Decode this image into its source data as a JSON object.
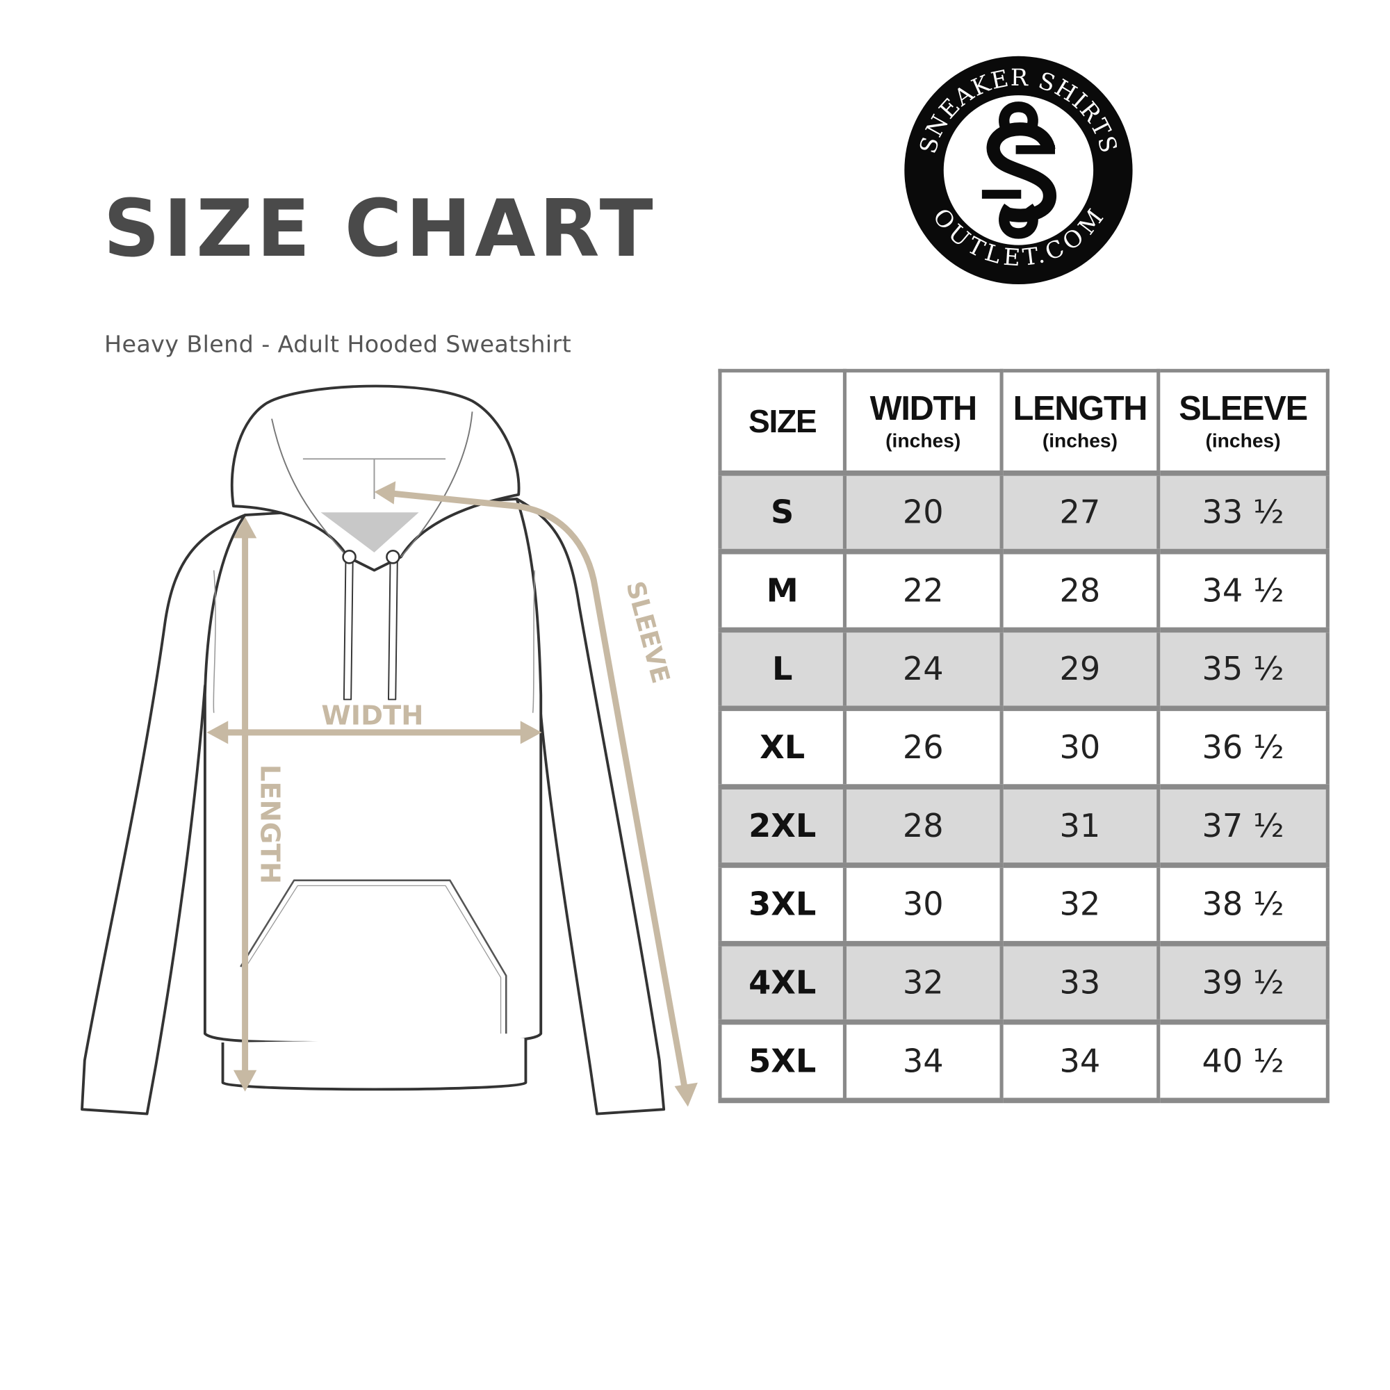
{
  "header": {
    "title": "SIZE CHART",
    "subtitle": "Heavy Blend - Adult Hooded Sweatshirt"
  },
  "logo": {
    "top_text": "SNEAKER SHIRTS",
    "bottom_text": "OUTLET.COM",
    "monogram": "SS"
  },
  "diagram": {
    "labels": {
      "width": "WIDTH",
      "length": "LENGTH",
      "sleeve": "SLEEVE"
    },
    "accent_color": "#c7b9a3"
  },
  "table": {
    "columns": [
      {
        "label": "SIZE",
        "unit": ""
      },
      {
        "label": "WIDTH",
        "unit": "(inches)"
      },
      {
        "label": "LENGTH",
        "unit": "(inches)"
      },
      {
        "label": "SLEEVE",
        "unit": "(inches)"
      }
    ],
    "rows": [
      [
        "S",
        "20",
        "27",
        "33 ½"
      ],
      [
        "M",
        "22",
        "28",
        "34 ½"
      ],
      [
        "L",
        "24",
        "29",
        "35 ½"
      ],
      [
        "XL",
        "26",
        "30",
        "36 ½"
      ],
      [
        "2XL",
        "28",
        "31",
        "37 ½"
      ],
      [
        "3XL",
        "30",
        "32",
        "38 ½"
      ],
      [
        "4XL",
        "32",
        "33",
        "39 ½"
      ],
      [
        "5XL",
        "34",
        "34",
        "40 ½"
      ]
    ],
    "stripe_color": "#d9d9d9",
    "border_color": "#8a8a8a"
  }
}
